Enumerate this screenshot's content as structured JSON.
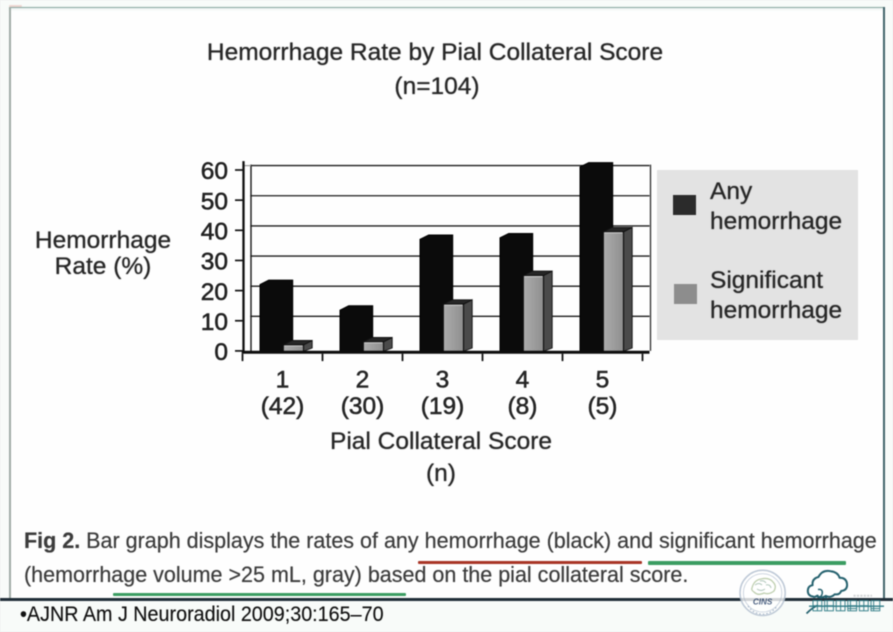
{
  "title": {
    "line1": "Hemorrhage Rate by Pial Collateral Score",
    "line2": "(n=104)"
  },
  "y_axis_label": {
    "line1": "Hemorrhage",
    "line2": "Rate (%)"
  },
  "x_axis_label": {
    "line1": "Pial Collateral Score",
    "line2": "(n)"
  },
  "legend": {
    "box_color": "#e3e3e3",
    "items": [
      {
        "label_line1": "Any",
        "label_line2": "hemorrhage",
        "swatch_color": "#2b2b2b"
      },
      {
        "label_line1": "Significant",
        "label_line2": "hemorrhage",
        "swatch_color": "#8d8d8d"
      }
    ]
  },
  "chart_data": {
    "type": "bar",
    "title": "Hemorrhage Rate by Pial Collateral Score (n=104)",
    "xlabel": "Pial Collateral Score (n)",
    "ylabel": "Hemorrhage Rate (%)",
    "categories": [
      "1",
      "2",
      "3",
      "4",
      "5"
    ],
    "category_sublabels": [
      "(42)",
      "(30)",
      "(19)",
      "(8)",
      "(5)"
    ],
    "series": [
      {
        "name": "Any hemorrhage",
        "color": "#0b0b0b",
        "values": [
          22,
          13.5,
          37,
          37.5,
          61
        ]
      },
      {
        "name": "Significant hemorrhage",
        "color": "#9a9a9a",
        "values": [
          2,
          3,
          15.5,
          25,
          39.5
        ]
      }
    ],
    "ylim": [
      0,
      60
    ],
    "yticks": [
      0,
      10,
      20,
      30,
      40,
      50,
      60
    ],
    "grid": true,
    "legend_position": "right",
    "style": "pseudo-3d"
  },
  "caption": {
    "fig_label": "Fig 2.",
    "line1_rest": " Bar graph displays the rates of any hemorrhage (black) and significant hemorrhage",
    "line2": "(hemorrhage volume >25 mL, gray) based on the pial collateral score.",
    "red_underline_color": "#a93526",
    "green_underline_color": "#3b9d62"
  },
  "footer": {
    "citation": "•AJNR Am J Neuroradiol 2009;30:165–70"
  },
  "watermarks": {
    "stamp_text": "CINS",
    "cloud_text": "神经介入在线",
    "color": "#2e7b86"
  }
}
